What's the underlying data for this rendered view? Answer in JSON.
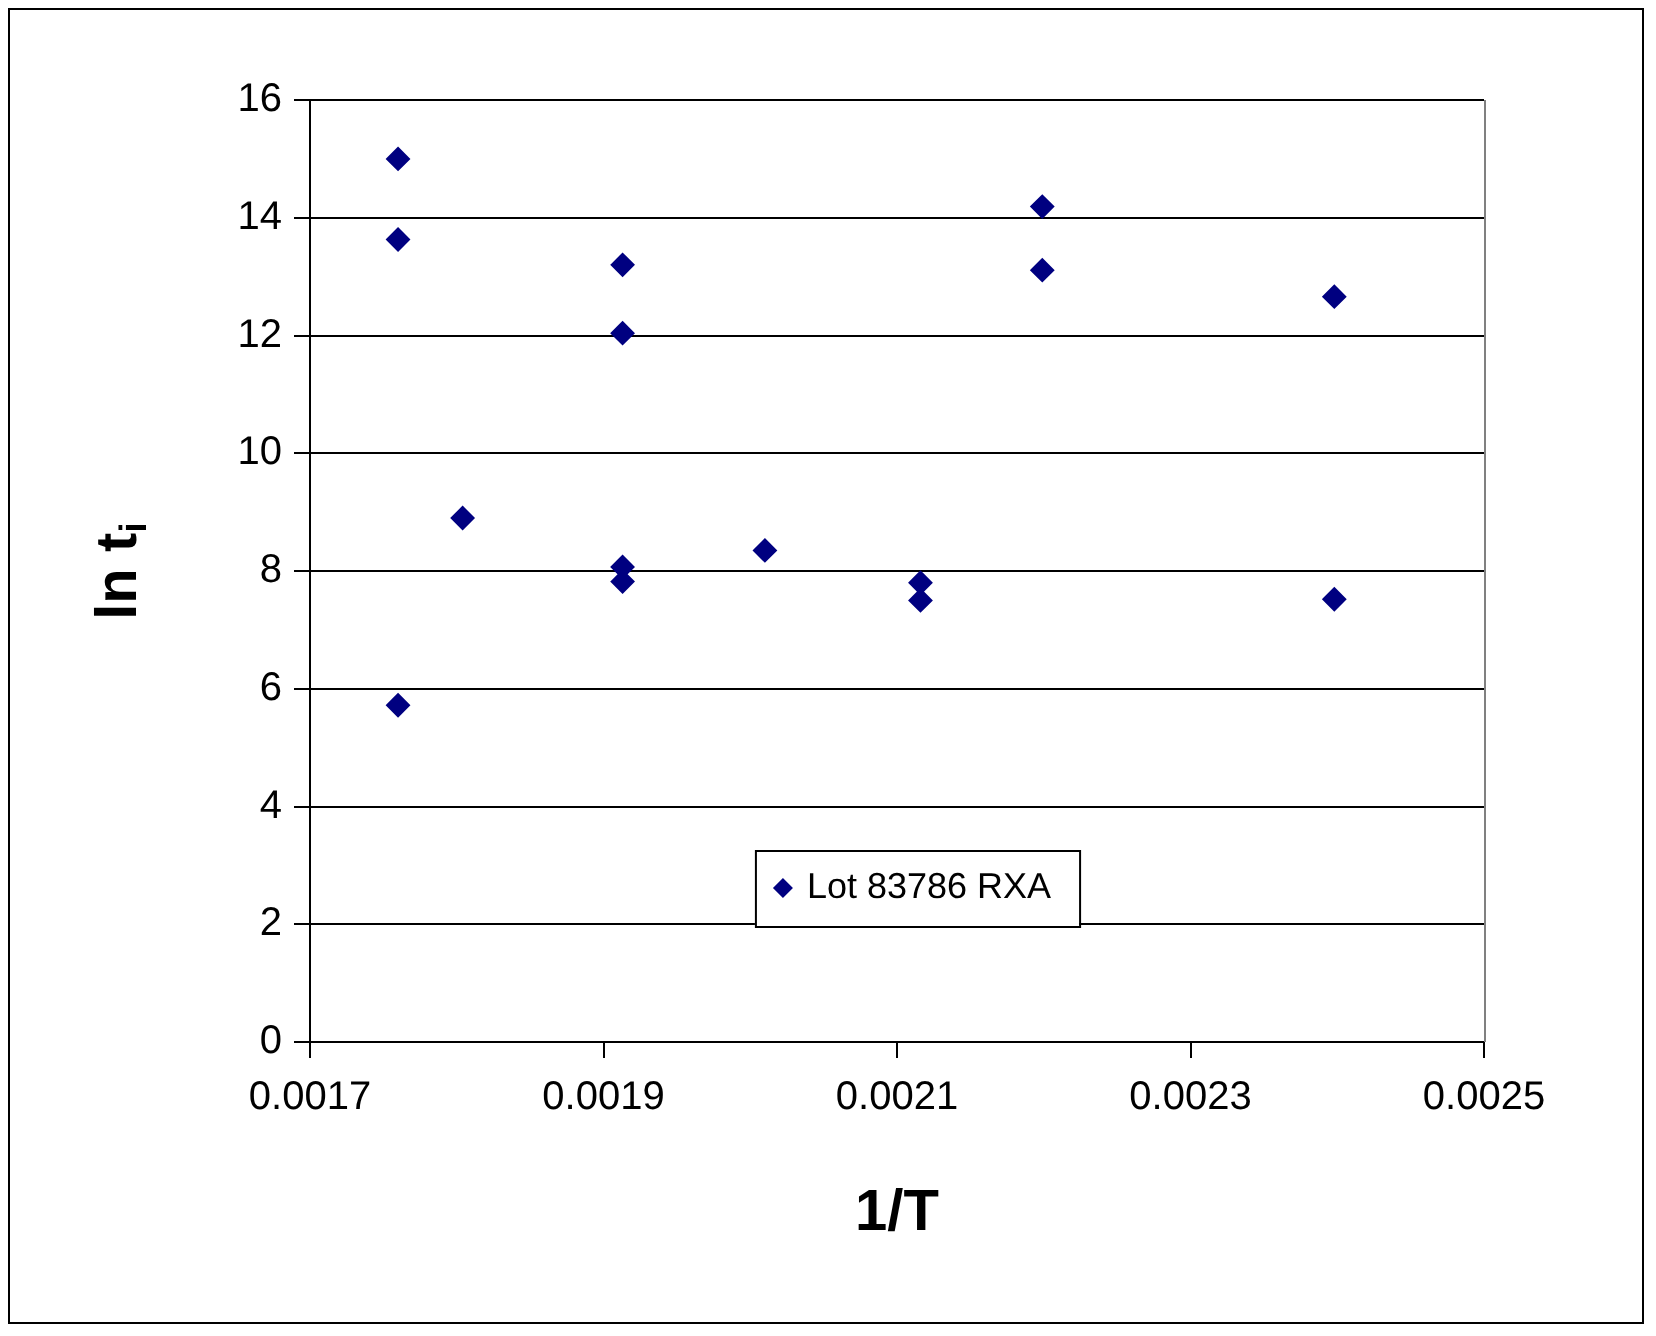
{
  "chart_data": {
    "type": "scatter",
    "xlabel": "1/T",
    "ylabel": "ln t$_{i}$",
    "series": [
      {
        "name": "Lot 83786 RXA",
        "color": "#000080",
        "x": [
          0.00176,
          0.00176,
          0.00176,
          0.001804,
          0.001913,
          0.001913,
          0.001913,
          0.001913,
          0.00201,
          0.002116,
          0.002116,
          0.002199,
          0.002199,
          0.002398,
          0.002398
        ],
        "values": [
          15.0,
          13.63,
          5.72,
          8.9,
          13.2,
          12.04,
          8.07,
          7.82,
          8.35,
          7.8,
          7.5,
          14.19,
          13.11,
          12.66,
          7.52
        ]
      }
    ],
    "xlim": [
      0.0017,
      0.0025
    ],
    "xticks": [
      0.0017,
      0.0019,
      0.0021,
      0.0023,
      0.0025
    ],
    "ylim": [
      0,
      16
    ],
    "yticks": [
      0,
      2,
      4,
      6,
      8,
      10,
      12,
      14,
      16
    ],
    "grid": "y",
    "legend": "bottom",
    "marker": "diamond"
  }
}
